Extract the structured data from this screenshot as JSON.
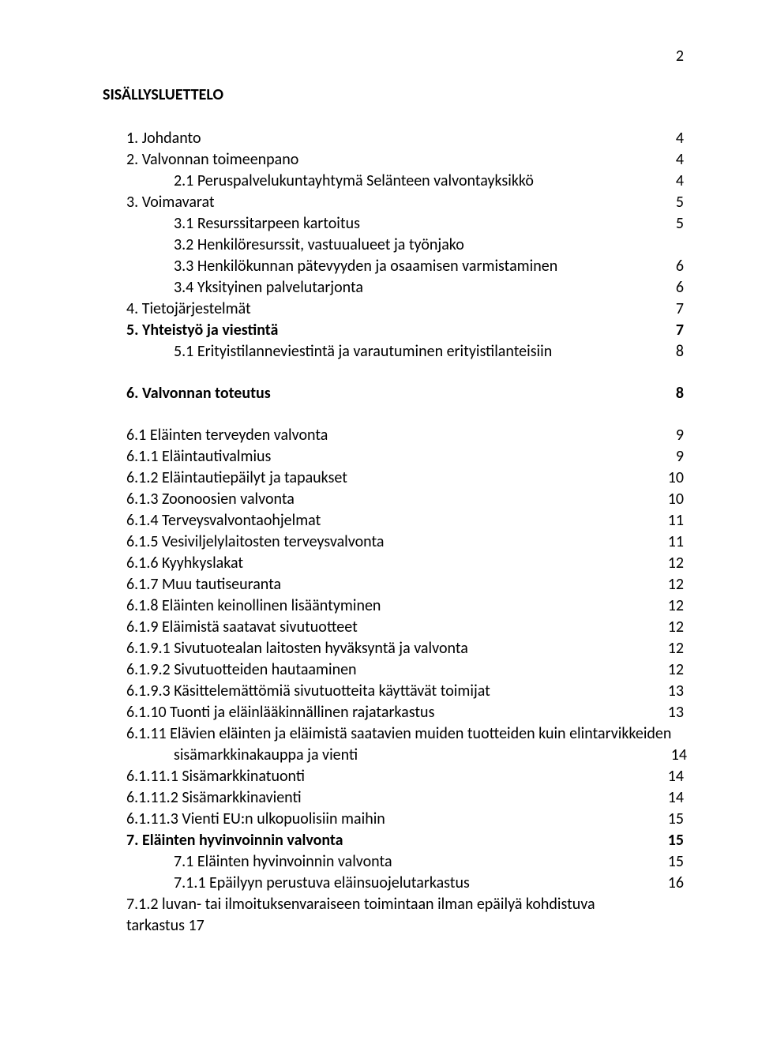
{
  "page_number": "2",
  "title": "SISÄLLYSLUETTELO",
  "lines": [
    {
      "label": "1. Johdanto",
      "page": "4",
      "indent": 0,
      "bold": false
    },
    {
      "label": "2. Valvonnan toimeenpano",
      "page": "4",
      "indent": 0,
      "bold": false
    },
    {
      "label": "2.1 Peruspalvelukuntayhtymä Selänteen valvontayksikkö",
      "page": "4",
      "indent": 1,
      "bold": false
    },
    {
      "label": "3. Voimavarat",
      "page": "5",
      "indent": 0,
      "bold": false
    },
    {
      "label": "3.1 Resurssitarpeen kartoitus",
      "page": "5",
      "indent": 1,
      "bold": false
    },
    {
      "label": "3.2 Henkilöresurssit, vastuualueet ja työnjako",
      "page": "",
      "indent": 1,
      "bold": false
    },
    {
      "label": "3.3 Henkilökunnan pätevyyden ja osaamisen varmistaminen",
      "page": "6",
      "indent": 1,
      "bold": false
    },
    {
      "label": "3.4 Yksityinen palvelutarjonta",
      "page": "6",
      "indent": 1,
      "bold": false
    },
    {
      "label": "4. Tietojärjestelmät",
      "page": "7",
      "indent": 0,
      "bold": false
    },
    {
      "label": "5. Yhteistyö ja viestintä",
      "page": "7",
      "indent": 0,
      "bold": true
    },
    {
      "label": "5.1 Erityistilanneviestintä ja varautuminen  erityistilanteisiin",
      "page": "8",
      "indent": 1,
      "bold": false,
      "gap_after": true
    },
    {
      "label": "6. Valvonnan toteutus",
      "page": "8",
      "indent": 0,
      "bold": true,
      "gap_after": true
    },
    {
      "label": "6.1 Eläinten terveyden valvonta",
      "page": "9",
      "indent": 2,
      "bold": false
    },
    {
      "label": "6.1.1 Eläintautivalmius",
      "page": "9",
      "indent": 2,
      "bold": false
    },
    {
      "label": "6.1.2 Eläintautiepäilyt ja tapaukset",
      "page": "10",
      "indent": 2,
      "bold": false
    },
    {
      "label": "6.1.3 Zoonoosien valvonta",
      "page": "10",
      "indent": 2,
      "bold": false
    },
    {
      "label": "6.1.4 Terveysvalvontaohjelmat",
      "page": "11",
      "indent": 2,
      "bold": false
    },
    {
      "label": "6.1.5 Vesiviljelylaitosten terveysvalvonta",
      "page": "11",
      "indent": 2,
      "bold": false
    },
    {
      "label": "6.1.6 Kyyhkyslakat",
      "page": "12",
      "indent": 2,
      "bold": false
    },
    {
      "label": "6.1.7 Muu tautiseuranta",
      "page": "12",
      "indent": 2,
      "bold": false
    },
    {
      "label": "6.1.8 Eläinten keinollinen lisääntyminen",
      "page": "12",
      "indent": 2,
      "bold": false
    },
    {
      "label": "6.1.9 Eläimistä saatavat sivutuotteet",
      "page": "12",
      "indent": 2,
      "bold": false
    },
    {
      "label": "6.1.9.1 Sivutuotealan laitosten hyväksyntä ja valvonta",
      "page": "12",
      "indent": 2,
      "bold": false
    },
    {
      "label": "6.1.9.2 Sivutuotteiden hautaaminen",
      "page": "12",
      "indent": 2,
      "bold": false
    },
    {
      "label": "6.1.9.3 Käsittelemättömiä sivutuotteita käyttävät toimijat",
      "page": "13",
      "indent": 2,
      "bold": false
    },
    {
      "label": "6.1.10 Tuonti ja eläinlääkinnällinen rajatarkastus",
      "page": "13",
      "indent": 2,
      "bold": false
    },
    {
      "label": "6.1.11 Elävien eläinten ja eläimistä saatavien muiden tuotteiden kuin elintarvikkeiden",
      "second_label": "sisämarkkinakauppa ja vienti",
      "page": "14",
      "indent": 2,
      "bold": false,
      "multi": true
    },
    {
      "label": "6.1.11.1 Sisämarkkinatuonti",
      "page": "14",
      "indent": 2,
      "bold": false
    },
    {
      "label": "6.1.11.2 Sisämarkkinavienti",
      "page": "14",
      "indent": 2,
      "bold": false
    },
    {
      "label": "6.1.11.3 Vienti EU:n ulkopuolisiin maihin",
      "page": "15",
      "indent": 2,
      "bold": false
    },
    {
      "label": "7. Eläinten hyvinvoinnin valvonta",
      "page": "15",
      "indent": 0,
      "bold": true
    },
    {
      "label": "7.1 Eläinten hyvinvoinnin valvonta",
      "page": "15",
      "indent": 3,
      "bold": false
    },
    {
      "label": "7.1.1 Epäilyyn perustuva eläinsuojelutarkastus",
      "page": "16",
      "indent": 3,
      "bold": false
    },
    {
      "label": "7.1.2 luvan- tai ilmoituksenvaraiseen toimintaan ilman epäilyä kohdistuva tarkastus 17",
      "page": "",
      "indent": 2,
      "bold": false
    }
  ]
}
